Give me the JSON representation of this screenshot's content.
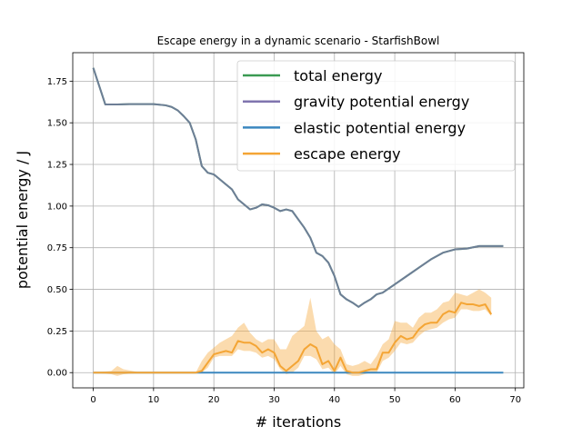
{
  "chart_data": {
    "type": "line",
    "title": "Escape energy in a dynamic scenario - StarfishBowl",
    "xlabel": "# iterations",
    "ylabel": "potential energy / J",
    "xlim": [
      -3.4,
      71.4
    ],
    "ylim": [
      -0.0915,
      1.921
    ],
    "xticks": [
      0,
      10,
      20,
      30,
      40,
      50,
      60,
      70
    ],
    "yticks": [
      0.0,
      0.25,
      0.5,
      0.75,
      1.0,
      1.25,
      1.5,
      1.75
    ],
    "xtick_labels": [
      "0",
      "10",
      "20",
      "30",
      "40",
      "50",
      "60",
      "70"
    ],
    "ytick_labels": [
      "0.00",
      "0.25",
      "0.50",
      "0.75",
      "1.00",
      "1.25",
      "1.50",
      "1.75"
    ],
    "grid": true,
    "legend_position": "top-right",
    "series": [
      {
        "name": "total energy",
        "color": "#3a9a52",
        "x": [
          0,
          2,
          4,
          6,
          8,
          10,
          12,
          13,
          14,
          15,
          16,
          17,
          18,
          19,
          20,
          21,
          22,
          23,
          24,
          25,
          26,
          27,
          28,
          29,
          30,
          31,
          32,
          33,
          34,
          35,
          36,
          37,
          38,
          39,
          40,
          41,
          42,
          43,
          44,
          45,
          46,
          47,
          48,
          50,
          52,
          54,
          56,
          58,
          60,
          62,
          64,
          66,
          68
        ],
        "y": [
          1.83,
          1.61,
          1.61,
          1.612,
          1.612,
          1.612,
          1.605,
          1.595,
          1.575,
          1.54,
          1.5,
          1.4,
          1.24,
          1.2,
          1.19,
          1.16,
          1.13,
          1.1,
          1.04,
          1.01,
          0.98,
          0.99,
          1.01,
          1.005,
          0.99,
          0.97,
          0.98,
          0.97,
          0.92,
          0.87,
          0.81,
          0.72,
          0.7,
          0.66,
          0.58,
          0.47,
          0.44,
          0.42,
          0.395,
          0.42,
          0.44,
          0.47,
          0.48,
          0.53,
          0.58,
          0.63,
          0.68,
          0.72,
          0.74,
          0.745,
          0.76,
          0.76,
          0.76
        ]
      },
      {
        "name": "gravity potential energy",
        "color": "#7f74ae",
        "x": [
          0,
          2,
          4,
          6,
          8,
          10,
          12,
          13,
          14,
          15,
          16,
          17,
          18,
          19,
          20,
          21,
          22,
          23,
          24,
          25,
          26,
          27,
          28,
          29,
          30,
          31,
          32,
          33,
          34,
          35,
          36,
          37,
          38,
          39,
          40,
          41,
          42,
          43,
          44,
          45,
          46,
          47,
          48,
          50,
          52,
          54,
          56,
          58,
          60,
          62,
          64,
          66,
          68
        ],
        "y": [
          1.83,
          1.61,
          1.61,
          1.612,
          1.612,
          1.612,
          1.605,
          1.595,
          1.575,
          1.54,
          1.5,
          1.4,
          1.24,
          1.2,
          1.19,
          1.16,
          1.13,
          1.1,
          1.04,
          1.01,
          0.98,
          0.99,
          1.01,
          1.005,
          0.99,
          0.97,
          0.98,
          0.97,
          0.92,
          0.87,
          0.81,
          0.72,
          0.7,
          0.66,
          0.58,
          0.47,
          0.44,
          0.42,
          0.395,
          0.42,
          0.44,
          0.47,
          0.48,
          0.53,
          0.58,
          0.63,
          0.68,
          0.72,
          0.74,
          0.745,
          0.76,
          0.76,
          0.76
        ]
      },
      {
        "name": "elastic potential energy",
        "color": "#3b87bf",
        "x": [
          0,
          68
        ],
        "y": [
          0.0,
          0.0
        ]
      },
      {
        "name": "escape energy",
        "color": "#f4a535",
        "x": [
          0,
          3,
          4,
          5,
          8,
          12,
          16,
          17,
          18,
          19,
          20,
          21,
          22,
          23,
          24,
          25,
          26,
          27,
          28,
          29,
          30,
          31,
          32,
          33,
          34,
          35,
          36,
          37,
          38,
          39,
          40,
          41,
          42,
          43,
          44,
          45,
          46,
          47,
          48,
          49,
          50,
          51,
          52,
          53,
          54,
          55,
          56,
          57,
          58,
          59,
          60,
          61,
          62,
          63,
          64,
          65,
          66
        ],
        "y": [
          0.0,
          0.0,
          0.0,
          0.0,
          0.0,
          0.0,
          0.0,
          0.0,
          0.01,
          0.06,
          0.11,
          0.12,
          0.13,
          0.12,
          0.19,
          0.18,
          0.18,
          0.16,
          0.12,
          0.14,
          0.12,
          0.04,
          0.01,
          0.04,
          0.07,
          0.14,
          0.17,
          0.15,
          0.05,
          0.07,
          0.01,
          0.09,
          0.01,
          0.0,
          0.0,
          0.01,
          0.02,
          0.02,
          0.12,
          0.12,
          0.18,
          0.22,
          0.2,
          0.21,
          0.26,
          0.29,
          0.3,
          0.3,
          0.35,
          0.37,
          0.36,
          0.42,
          0.41,
          0.41,
          0.4,
          0.41,
          0.35
        ],
        "band_upper": [
          0.0,
          0.01,
          0.04,
          0.02,
          0.0,
          0.0,
          0.0,
          0.0,
          0.07,
          0.12,
          0.15,
          0.18,
          0.2,
          0.22,
          0.27,
          0.3,
          0.24,
          0.2,
          0.18,
          0.2,
          0.2,
          0.14,
          0.14,
          0.22,
          0.25,
          0.28,
          0.45,
          0.25,
          0.2,
          0.22,
          0.17,
          0.14,
          0.05,
          0.04,
          0.05,
          0.07,
          0.05,
          0.1,
          0.17,
          0.2,
          0.31,
          0.3,
          0.3,
          0.27,
          0.33,
          0.36,
          0.36,
          0.38,
          0.42,
          0.43,
          0.48,
          0.47,
          0.46,
          0.48,
          0.5,
          0.48,
          0.45
        ],
        "band_lower": [
          0.0,
          -0.01,
          -0.02,
          -0.01,
          0.0,
          0.0,
          0.0,
          0.0,
          0.0,
          0.03,
          0.09,
          0.1,
          0.1,
          0.1,
          0.14,
          0.13,
          0.13,
          0.12,
          0.09,
          0.1,
          0.08,
          0.02,
          -0.01,
          0.0,
          0.03,
          0.1,
          0.1,
          0.08,
          0.02,
          0.03,
          -0.01,
          0.04,
          -0.01,
          -0.02,
          -0.02,
          -0.01,
          0.0,
          0.0,
          0.07,
          0.09,
          0.13,
          0.18,
          0.17,
          0.18,
          0.22,
          0.25,
          0.26,
          0.27,
          0.3,
          0.32,
          0.33,
          0.38,
          0.38,
          0.37,
          0.37,
          0.38,
          0.34
        ]
      }
    ]
  }
}
